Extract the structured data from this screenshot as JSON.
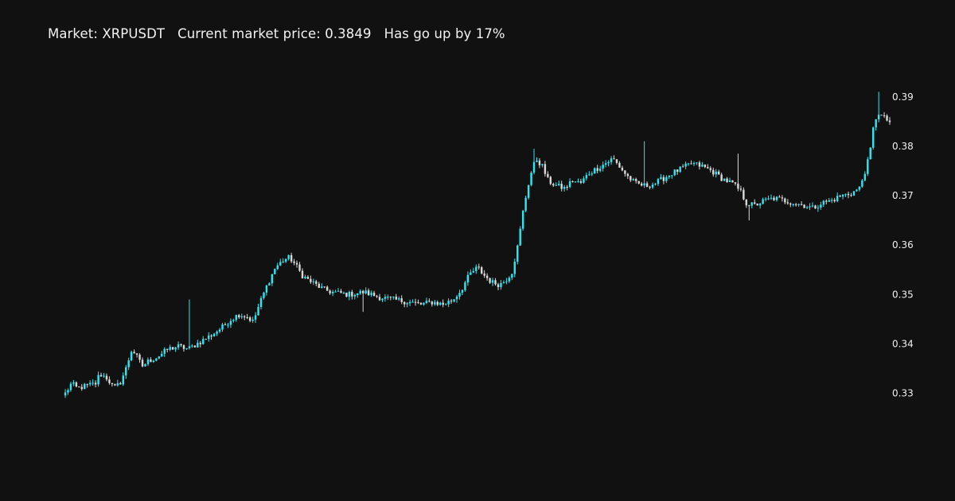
{
  "header": {
    "market_label": "Market: XRPUSDT",
    "price_label": "Current market price: 0.3849",
    "change_label": "Has go up by 17%"
  },
  "chart_data": {
    "type": "candlestick",
    "title": "Market: XRPUSDT   Current market price: 0.3849   Has go up by 17%",
    "xlabel": "",
    "ylabel": "",
    "ylim": [
      0.3195,
      0.3935
    ],
    "y_ticks": [
      0.33,
      0.34,
      0.35,
      0.36,
      0.37,
      0.38,
      0.39
    ],
    "y_tick_labels": [
      "0.33",
      "0.34",
      "0.35",
      "0.36",
      "0.37",
      "0.38",
      "0.39"
    ],
    "y_axis_side": "right",
    "grid": false,
    "legend": "none",
    "colors": {
      "increasing": "#2ee6f0",
      "decreasing": "#d8d8d8",
      "background": "#111111"
    },
    "candle_count": 300,
    "close_path": [
      [
        0,
        0.33
      ],
      [
        3,
        0.332
      ],
      [
        6,
        0.331
      ],
      [
        10,
        0.3315
      ],
      [
        15,
        0.332
      ],
      [
        17,
        0.334
      ],
      [
        21,
        0.333
      ],
      [
        24,
        0.331
      ],
      [
        27,
        0.332
      ],
      [
        30,
        0.335
      ],
      [
        33,
        0.339
      ],
      [
        36,
        0.337
      ],
      [
        38,
        0.3355
      ],
      [
        41,
        0.3365
      ],
      [
        46,
        0.3375
      ],
      [
        51,
        0.339
      ],
      [
        56,
        0.3395
      ],
      [
        61,
        0.339
      ],
      [
        67,
        0.3405
      ],
      [
        73,
        0.342
      ],
      [
        78,
        0.3435
      ],
      [
        82,
        0.345
      ],
      [
        86,
        0.346
      ],
      [
        90,
        0.3455
      ],
      [
        93,
        0.3445
      ],
      [
        96,
        0.348
      ],
      [
        100,
        0.352
      ],
      [
        104,
        0.3555
      ],
      [
        108,
        0.357
      ],
      [
        111,
        0.3575
      ],
      [
        114,
        0.356
      ],
      [
        117,
        0.354
      ],
      [
        120,
        0.353
      ],
      [
        124,
        0.352
      ],
      [
        128,
        0.351
      ],
      [
        132,
        0.3505
      ],
      [
        140,
        0.35
      ],
      [
        148,
        0.3505
      ],
      [
        155,
        0.3495
      ],
      [
        162,
        0.349
      ],
      [
        170,
        0.3485
      ],
      [
        176,
        0.348
      ],
      [
        182,
        0.3485
      ],
      [
        187,
        0.348
      ],
      [
        192,
        0.349
      ],
      [
        196,
        0.351
      ],
      [
        200,
        0.354
      ],
      [
        204,
        0.3555
      ],
      [
        207,
        0.354
      ],
      [
        211,
        0.3525
      ],
      [
        215,
        0.352
      ],
      [
        218,
        0.353
      ],
      [
        221,
        0.3545
      ],
      [
        224,
        0.36
      ],
      [
        227,
        0.368
      ],
      [
        230,
        0.374
      ],
      [
        233,
        0.3775
      ],
      [
        236,
        0.376
      ],
      [
        239,
        0.373
      ],
      [
        243,
        0.372
      ],
      [
        247,
        0.3715
      ],
      [
        251,
        0.373
      ],
      [
        255,
        0.3725
      ],
      [
        259,
        0.3745
      ],
      [
        263,
        0.3755
      ],
      [
        267,
        0.3765
      ],
      [
        271,
        0.3775
      ],
      [
        274,
        0.376
      ],
      [
        278,
        0.374
      ],
      [
        282,
        0.3725
      ],
      [
        287,
        0.372
      ],
      [
        292,
        0.3725
      ],
      [
        296,
        0.3735
      ],
      [
        300,
        0.3745
      ],
      [
        305,
        0.3755
      ],
      [
        310,
        0.3765
      ],
      [
        315,
        0.376
      ],
      [
        320,
        0.375
      ],
      [
        325,
        0.3735
      ],
      [
        330,
        0.3725
      ],
      [
        334,
        0.371
      ],
      [
        337,
        0.3685
      ],
      [
        341,
        0.368
      ],
      [
        346,
        0.369
      ],
      [
        351,
        0.3695
      ],
      [
        356,
        0.369
      ],
      [
        361,
        0.3685
      ],
      [
        366,
        0.368
      ],
      [
        370,
        0.3675
      ],
      [
        374,
        0.3685
      ],
      [
        379,
        0.369
      ],
      [
        384,
        0.37
      ],
      [
        389,
        0.3705
      ],
      [
        393,
        0.3715
      ],
      [
        395,
        0.374
      ],
      [
        398,
        0.378
      ],
      [
        400,
        0.384
      ],
      [
        402,
        0.387
      ],
      [
        404,
        0.386
      ],
      [
        406,
        0.3855
      ],
      [
        408,
        0.3849
      ]
    ],
    "spikes": [
      {
        "i": 61,
        "high": 0.349
      },
      {
        "i": 97,
        "low": 0.3502
      },
      {
        "i": 147,
        "low": 0.3465
      },
      {
        "i": 232,
        "high": 0.3795
      },
      {
        "i": 287,
        "high": 0.381
      },
      {
        "i": 333,
        "high": 0.3785
      },
      {
        "i": 338,
        "low": 0.365
      },
      {
        "i": 403,
        "high": 0.391
      }
    ]
  }
}
